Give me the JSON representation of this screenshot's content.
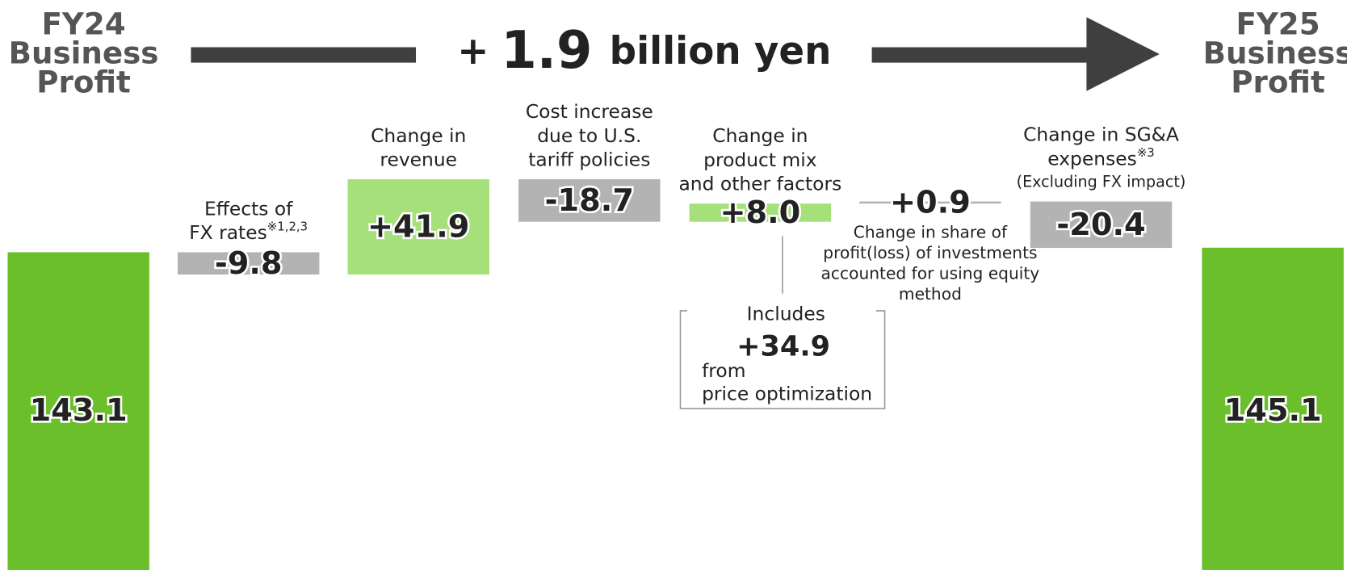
{
  "chart_data": {
    "type": "waterfall",
    "headline": {
      "sign": "+",
      "value": 1.9,
      "unit": "billion yen"
    },
    "categories": [
      [
        "FY24",
        "Business",
        "Profit"
      ],
      [
        "Effects of",
        "FX rates"
      ],
      [
        "Change in",
        "revenue"
      ],
      [
        "Cost increase",
        "due to U.S.",
        "tariff policies"
      ],
      [
        "Change in",
        "product mix",
        "and other factors"
      ],
      [
        "Change in share of",
        "profit(loss) of investments",
        "accounted for using equity",
        "method"
      ],
      [
        "Change in SG&A",
        "expenses"
      ],
      [
        "FY25",
        "Business",
        "Profit"
      ]
    ],
    "category_notes": [
      null,
      "※1,2,3",
      null,
      null,
      null,
      null,
      "※3",
      null
    ],
    "category_captions": [
      null,
      null,
      null,
      null,
      null,
      null,
      "(Excluding FX impact)",
      null
    ],
    "values": [
      143.1,
      -9.8,
      41.9,
      -18.7,
      8.0,
      0.9,
      -20.4,
      145.1
    ],
    "value_labels": [
      "143.1",
      "-9.8",
      "+41.9",
      "-18.7",
      "+8.0",
      "+0.9",
      "-20.4",
      "145.1"
    ],
    "totals": [
      true,
      false,
      false,
      false,
      false,
      false,
      false,
      true
    ],
    "colors": {
      "total": "#6abf2a",
      "increase": "#a6e07a",
      "decrease": "#b3b3b3"
    },
    "ylim": [
      0,
      254
    ],
    "annotation": {
      "lines": [
        "Includes",
        "from",
        "price optimization"
      ],
      "value": 34.9,
      "label": "+34.9"
    }
  }
}
